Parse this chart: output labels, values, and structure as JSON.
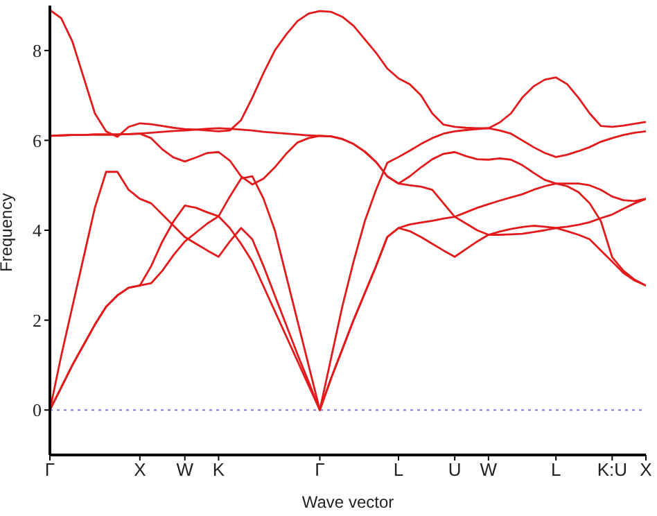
{
  "chart_data": {
    "type": "line",
    "xlabel": "Wave vector",
    "ylabel": "Frequency",
    "categories": [
      "Γ",
      null,
      null,
      null,
      null,
      null,
      null,
      null,
      "X",
      null,
      null,
      null,
      "W",
      null,
      null,
      "K",
      null,
      null,
      null,
      null,
      null,
      null,
      null,
      null,
      "Γ",
      null,
      null,
      null,
      null,
      null,
      null,
      "L",
      null,
      null,
      null,
      null,
      "U",
      null,
      null,
      "W",
      null,
      null,
      null,
      null,
      null,
      "L",
      null,
      null,
      null,
      null,
      "K:U",
      null,
      null,
      "X"
    ],
    "series": [
      {
        "color": "#e31a1c",
        "values": [
          0,
          0.5,
          1.0,
          1.45,
          1.9,
          2.3,
          2.55,
          2.72,
          2.77,
          2.82,
          3.1,
          3.45,
          3.75,
          3.95,
          4.15,
          4.31,
          4.05,
          3.7,
          3.3,
          2.75,
          2.2,
          1.65,
          1.1,
          0.55,
          0,
          0.7,
          1.35,
          2.0,
          2.6,
          3.2,
          3.85,
          4.05,
          3.98,
          3.85,
          3.7,
          3.55,
          3.41,
          3.58,
          3.75,
          3.9,
          3.97,
          4.03,
          4.07,
          4.1,
          4.08,
          4.05,
          4.08,
          4.12,
          4.18,
          4.27,
          4.35,
          4.48,
          4.6,
          4.7
        ]
      },
      {
        "color": "#e31a1c",
        "values": [
          0,
          0.5,
          1.0,
          1.45,
          1.9,
          2.3,
          2.55,
          2.72,
          2.77,
          3.2,
          3.75,
          4.2,
          4.55,
          4.5,
          4.4,
          4.31,
          4.75,
          5.15,
          5.2,
          4.7,
          4.0,
          3.0,
          2.0,
          1.0,
          0,
          0.7,
          1.35,
          2.0,
          2.6,
          3.2,
          3.85,
          4.05,
          4.13,
          4.17,
          4.21,
          4.26,
          4.3,
          4.4,
          4.5,
          4.58,
          4.66,
          4.73,
          4.8,
          4.9,
          4.98,
          5.04,
          4.98,
          4.85,
          4.6,
          4.2,
          3.4,
          3.1,
          2.9,
          2.77
        ]
      },
      {
        "color": "#e31a1c",
        "values": [
          0,
          1.2,
          2.3,
          3.4,
          4.5,
          5.3,
          5.3,
          4.9,
          4.7,
          4.6,
          4.35,
          4.1,
          3.85,
          3.7,
          3.55,
          3.41,
          3.75,
          4.05,
          3.8,
          3.2,
          2.55,
          1.9,
          1.25,
          0.63,
          0,
          1.15,
          2.3,
          3.3,
          4.2,
          4.9,
          5.5,
          5.63,
          5.77,
          5.92,
          6.05,
          6.15,
          6.2,
          6.23,
          6.25,
          6.27,
          6.22,
          6.15,
          6.0,
          5.85,
          5.72,
          5.63,
          5.68,
          5.76,
          5.85,
          5.97,
          6.05,
          6.12,
          6.17,
          6.2
        ]
      },
      {
        "color": "#e31a1c",
        "values": [
          6.1,
          6.11,
          6.12,
          6.12,
          6.13,
          6.13,
          6.13,
          6.14,
          6.15,
          6.05,
          5.8,
          5.62,
          5.53,
          5.62,
          5.72,
          5.74,
          5.55,
          5.2,
          5.02,
          5.15,
          5.4,
          5.7,
          5.95,
          6.05,
          6.1,
          6.09,
          6.03,
          5.92,
          5.75,
          5.52,
          5.2,
          5.04,
          5.0,
          4.97,
          4.9,
          4.6,
          4.3,
          4.15,
          4.0,
          3.9,
          3.9,
          3.91,
          3.92,
          3.96,
          4.0,
          4.05,
          3.98,
          3.9,
          3.8,
          3.55,
          3.3,
          3.05,
          2.88,
          2.77
        ]
      },
      {
        "color": "#e31a1c",
        "values": [
          6.1,
          6.11,
          6.12,
          6.12,
          6.13,
          6.13,
          6.13,
          6.14,
          6.15,
          6.17,
          6.19,
          6.21,
          6.22,
          6.24,
          6.26,
          6.27,
          6.26,
          6.24,
          6.22,
          6.19,
          6.17,
          6.15,
          6.13,
          6.11,
          6.1,
          6.09,
          6.03,
          5.92,
          5.75,
          5.52,
          5.2,
          5.04,
          5.2,
          5.4,
          5.58,
          5.7,
          5.74,
          5.65,
          5.58,
          5.57,
          5.6,
          5.57,
          5.45,
          5.28,
          5.12,
          5.04,
          5.04,
          5.04,
          5.0,
          4.9,
          4.75,
          4.67,
          4.65,
          4.7
        ]
      },
      {
        "color": "#e31a1c",
        "values": [
          8.9,
          8.72,
          8.2,
          7.4,
          6.6,
          6.2,
          6.08,
          6.3,
          6.38,
          6.36,
          6.32,
          6.28,
          6.25,
          6.24,
          6.22,
          6.2,
          6.22,
          6.45,
          6.95,
          7.5,
          8.0,
          8.35,
          8.65,
          8.82,
          8.88,
          8.86,
          8.75,
          8.55,
          8.25,
          7.95,
          7.6,
          7.38,
          7.25,
          7.0,
          6.6,
          6.35,
          6.3,
          6.28,
          6.27,
          6.27,
          6.4,
          6.6,
          6.95,
          7.2,
          7.35,
          7.4,
          7.25,
          6.95,
          6.6,
          6.32,
          6.3,
          6.33,
          6.37,
          6.41
        ]
      }
    ],
    "ylim": [
      -1,
      9
    ],
    "yticks": [
      0,
      2,
      4,
      6,
      8
    ],
    "ref_lines": [
      {
        "axis": "y",
        "value": 0,
        "color": "#7b7bd6",
        "line_style": "dotted"
      }
    ],
    "grid": false,
    "legend": false,
    "marker": "none",
    "line_style": "solid"
  }
}
